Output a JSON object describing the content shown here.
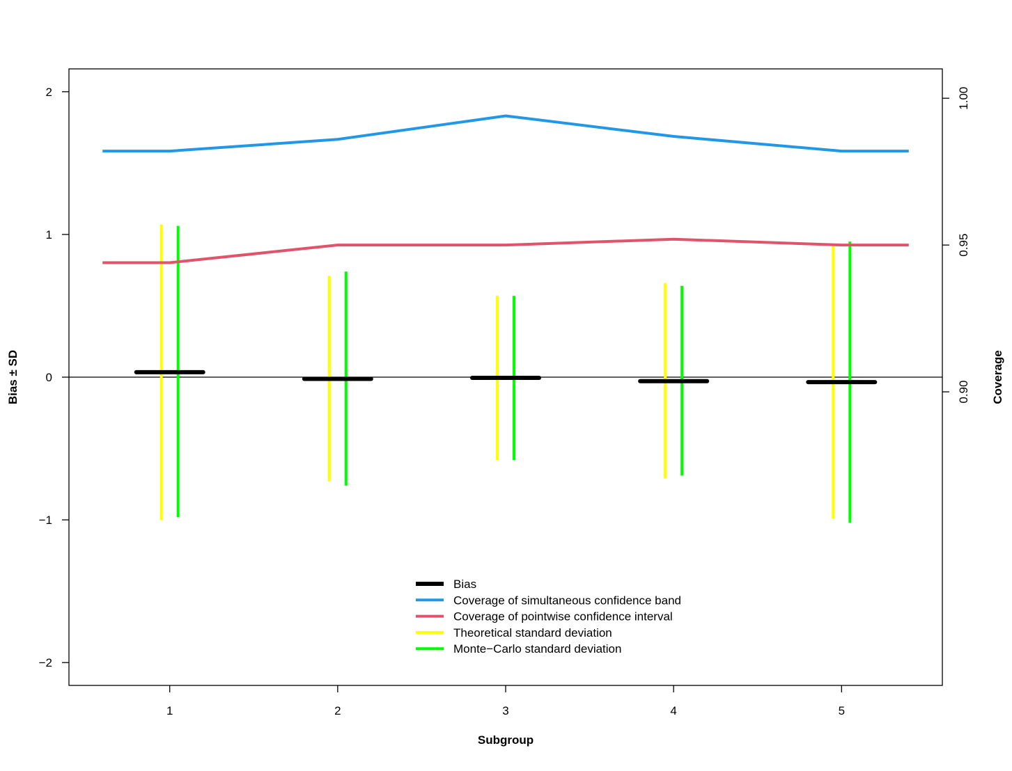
{
  "chart_data": {
    "type": "line",
    "xlabel": "Subgroup",
    "ylabel_left": "Bias ± SD",
    "ylabel_right": "Coverage",
    "x": [
      1,
      2,
      3,
      4,
      5
    ],
    "x_ticks": [
      "1",
      "2",
      "3",
      "4",
      "5"
    ],
    "xlim": [
      0.4,
      5.6
    ],
    "ylim_left": [
      -2.16,
      2.16
    ],
    "ylim_right": [
      0.8,
      1.01
    ],
    "y_ticks_left": [
      "2",
      "1",
      "0",
      "−1",
      "−2"
    ],
    "y_ticks_left_values": [
      2,
      1,
      0,
      -1,
      -2
    ],
    "y_ticks_right": [
      "0.90",
      "0.95",
      "1.00"
    ],
    "y_ticks_right_values": [
      0.9,
      0.95,
      1.0
    ],
    "reference_line_y": 0,
    "bias": [
      0.035,
      -0.012,
      -0.005,
      -0.028,
      -0.035
    ],
    "theoretical_sd": {
      "upper": [
        1.07,
        0.71,
        0.57,
        0.66,
        0.92
      ],
      "lower": [
        -1.0,
        -0.73,
        -0.58,
        -0.71,
        -0.99
      ]
    },
    "monte_carlo_sd": {
      "upper": [
        1.06,
        0.74,
        0.57,
        0.64,
        0.95
      ],
      "lower": [
        -0.98,
        -0.76,
        -0.58,
        -0.69,
        -1.02
      ]
    },
    "coverage_simultaneous": [
      0.982,
      0.986,
      0.994,
      0.987,
      0.982
    ],
    "coverage_pointwise": [
      0.944,
      0.95,
      0.95,
      0.952,
      0.95
    ],
    "colors": {
      "bias": "#000000",
      "simultaneous": "#2297E6",
      "pointwise": "#DF536B",
      "theoretical": "#FFFF00",
      "monte_carlo": "#00FF00"
    },
    "legend": {
      "placement": "bottom-center",
      "entries": [
        {
          "label": "Bias",
          "color": "#000000"
        },
        {
          "label": "Coverage of simultaneous confidence band",
          "color": "#2297E6"
        },
        {
          "label": "Coverage of pointwise confidence interval",
          "color": "#DF536B"
        },
        {
          "label": "Theoretical standard deviation",
          "color": "#FFFF00"
        },
        {
          "label": "Monte−Carlo standard deviation",
          "color": "#00FF00"
        }
      ]
    }
  }
}
